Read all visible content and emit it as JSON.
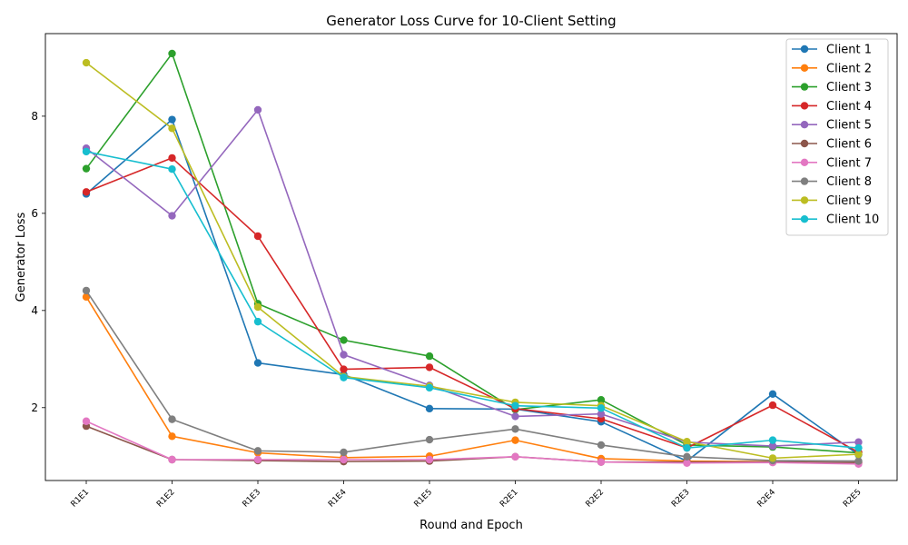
{
  "chart_data": {
    "type": "line",
    "title": "Generator Loss Curve for 10-Client Setting",
    "xlabel": "Round and Epoch",
    "ylabel": "Generator Loss",
    "categories": [
      "R1E1",
      "R1E2",
      "R1E3",
      "R1E4",
      "R1E5",
      "R2E1",
      "R2E2",
      "R2E3",
      "R2E4",
      "R2E5"
    ],
    "ylim": [
      0.5,
      9.7
    ],
    "yticks": [
      2,
      4,
      6,
      8
    ],
    "grid": false,
    "legend_position": "top-right",
    "series": [
      {
        "name": "Client 1",
        "color": "#1f77b4",
        "values": [
          6.4,
          7.93,
          2.92,
          2.68,
          1.98,
          1.97,
          1.71,
          0.9,
          2.28,
          1.03
        ]
      },
      {
        "name": "Client 2",
        "color": "#ff7f0e",
        "values": [
          4.28,
          1.41,
          1.07,
          0.97,
          1.0,
          1.33,
          0.95,
          0.9,
          0.89,
          0.86
        ]
      },
      {
        "name": "Client 3",
        "color": "#2ca02c",
        "values": [
          6.92,
          9.29,
          4.14,
          3.39,
          3.06,
          1.96,
          2.16,
          1.23,
          1.19,
          1.07
        ]
      },
      {
        "name": "Client 4",
        "color": "#d62728",
        "values": [
          6.44,
          7.14,
          5.53,
          2.79,
          2.83,
          1.98,
          1.77,
          1.17,
          2.05,
          1.08
        ]
      },
      {
        "name": "Client 5",
        "color": "#9467bd",
        "values": [
          7.34,
          5.95,
          8.13,
          3.09,
          2.46,
          1.82,
          1.87,
          1.29,
          1.21,
          1.29
        ]
      },
      {
        "name": "Client 6",
        "color": "#8c564b",
        "values": [
          1.62,
          0.93,
          0.91,
          0.89,
          0.9,
          0.99,
          0.88,
          0.88,
          0.88,
          0.87
        ]
      },
      {
        "name": "Client 7",
        "color": "#e377c2",
        "values": [
          1.72,
          0.93,
          0.93,
          0.93,
          0.93,
          0.99,
          0.88,
          0.86,
          0.87,
          0.84
        ]
      },
      {
        "name": "Client 8",
        "color": "#7f7f7f",
        "values": [
          4.41,
          1.76,
          1.11,
          1.08,
          1.34,
          1.56,
          1.23,
          0.99,
          0.91,
          0.9
        ]
      },
      {
        "name": "Client 9",
        "color": "#bcbd22",
        "values": [
          9.1,
          7.75,
          4.07,
          2.64,
          2.44,
          2.11,
          2.04,
          1.3,
          0.96,
          1.04
        ]
      },
      {
        "name": "Client 10",
        "color": "#17becf",
        "values": [
          7.27,
          6.91,
          3.77,
          2.62,
          2.41,
          2.04,
          1.99,
          1.17,
          1.33,
          1.17
        ]
      }
    ]
  }
}
